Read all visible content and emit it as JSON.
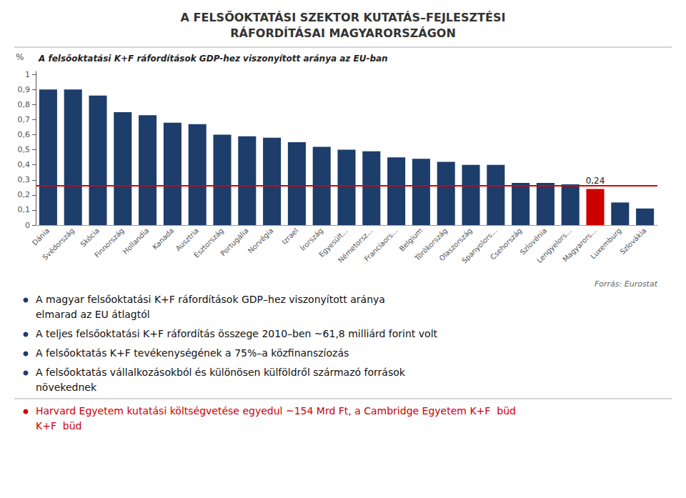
{
  "chart_data": {
    "type": "bar",
    "title": "A FELSŐOKTATÁSI SZEKTOR KUTATÁS–FEJLESZTÉSI\nRÁFORDÍTÁSAI MAGYARORSZÁGON",
    "subtitle": "A felsőoktatási K+F ráfordítások GDP-hez viszonyított aránya az EU-ban",
    "ylabel": "%",
    "categories": [
      "Dánia",
      "Svédország",
      "Skócia",
      "Finnország",
      "Hollandia",
      "Kanada",
      "Ausztria",
      "Észtország",
      "Portugália",
      "Norvégia",
      "Izrael",
      "Írország",
      "Egyesült...",
      "Németorsz...",
      "Franciaors...",
      "Belgium",
      "Törökország",
      "Olaszország",
      "Spanyolors...",
      "Csehország",
      "Szlovénia",
      "Lengyelors...",
      "Magyarors...",
      "Luxemburg",
      "Szlovákia"
    ],
    "values": [
      0.9,
      0.9,
      0.86,
      0.75,
      0.73,
      0.68,
      0.67,
      0.6,
      0.59,
      0.58,
      0.55,
      0.52,
      0.5,
      0.49,
      0.45,
      0.44,
      0.42,
      0.4,
      0.4,
      0.28,
      0.28,
      0.27,
      0.24,
      0.15,
      0.11
    ],
    "colors": [
      "#1d3d6b",
      "#1d3d6b",
      "#1d3d6b",
      "#1d3d6b",
      "#1d3d6b",
      "#1d3d6b",
      "#1d3d6b",
      "#1d3d6b",
      "#1d3d6b",
      "#1d3d6b",
      "#1d3d6b",
      "#1d3d6b",
      "#1d3d6b",
      "#1d3d6b",
      "#1d3d6b",
      "#1d3d6b",
      "#1d3d6b",
      "#1d3d6b",
      "#1d3d6b",
      "#1d3d6b",
      "#1d3d6b",
      "#1d3d6b",
      "#cc0000",
      "#1d3d6b",
      "#1d3d6b"
    ],
    "value_labels": [
      null,
      null,
      null,
      null,
      null,
      null,
      null,
      null,
      null,
      null,
      null,
      null,
      null,
      null,
      null,
      null,
      null,
      null,
      null,
      null,
      null,
      null,
      "0,24",
      null,
      null
    ],
    "reference_line": {
      "value": 0.26,
      "color": "#dd0000"
    },
    "ylim": [
      0,
      1.02
    ],
    "yticks": [
      0,
      {
        "value": 0.1,
        "label": "0,1"
      },
      {
        "value": 0.2,
        "label": "0,2"
      },
      {
        "value": 0.3,
        "label": "0,3"
      },
      {
        "value": 0.4,
        "label": "0,4"
      },
      {
        "value": 0.5,
        "label": "0,5"
      },
      {
        "value": 0.6,
        "label": "0,6"
      },
      {
        "value": 0.7,
        "label": "0,7"
      },
      {
        "value": 0.8,
        "label": "0,8"
      },
      {
        "value": 0.9,
        "label": "0,9"
      },
      1
    ],
    "grid": false,
    "source": "Forrás: Eurostat",
    "annotations": [
      {
        "lines": [
          "A magyar felsőoktatási K+F ráfordítások GDP–hez viszonyított aránya",
          "elmarad az EU átlagtól"
        ]
      },
      {
        "lines": [
          "A teljes felsőoktatási K+F ráfordítás összege 2010–ben ~61,8 milliárd forint volt"
        ]
      },
      {
        "lines": [
          "A felsőoktatás K+F tevékenységének a 75%–a közfinanszíozás"
        ]
      },
      {
        "lines": [
          "A felsőoktatás vállalkozásokból és különösen külföldről származó források",
          "növekednek"
        ]
      },
      {
        "lines": [
          "Harvard Egyetem kutatási költségvetése egyedul ~154 Mrd Ft, a Cambridge Egyetem K+F  büd",
          "K+F  büd"
        ],
        "color": "#cc0000"
      }
    ]
  }
}
